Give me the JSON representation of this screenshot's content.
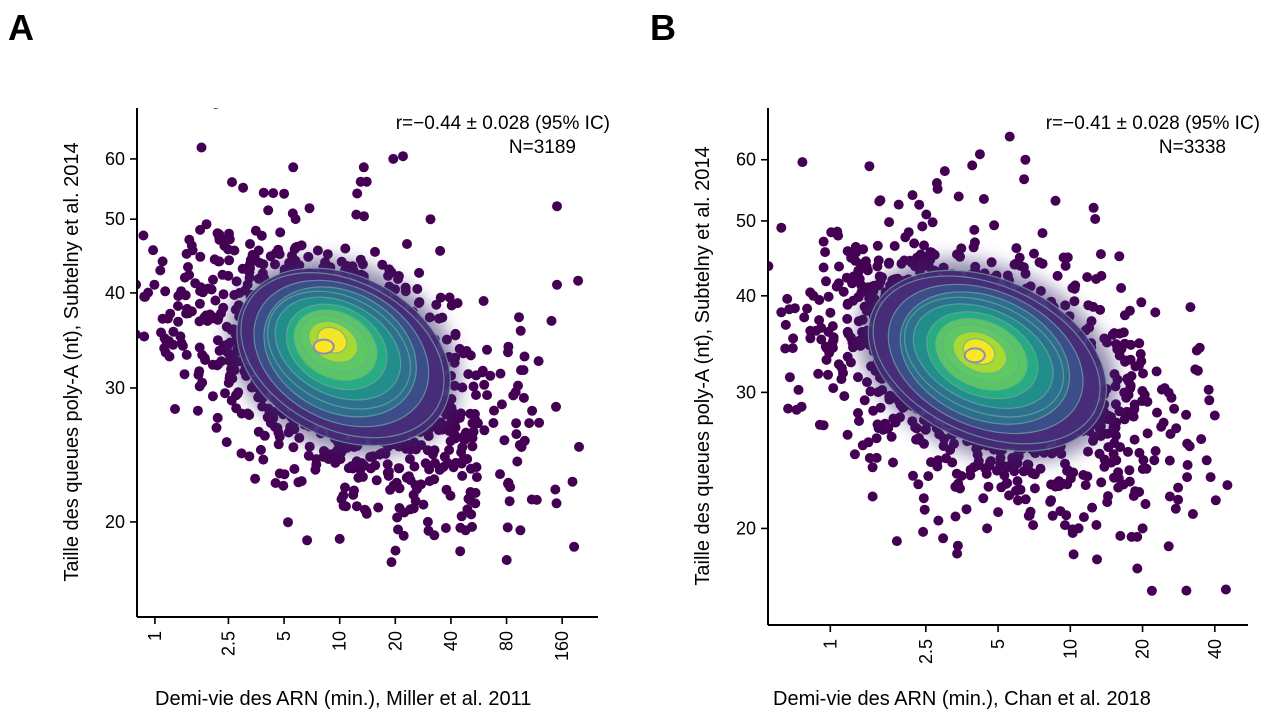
{
  "chart_data": [
    {
      "panel_letter": "A",
      "type": "scatter",
      "density_overlay": "kde-contours-viridis",
      "xlabel": "Demi-vie des ARN (min.), Miller et al.  2011",
      "ylabel": "Taille des queues poly-A (nt), Subtelny et al. 2014",
      "xscale": "log",
      "yscale": "log",
      "xlim": [
        0.8,
        250
      ],
      "ylim": [
        15,
        70
      ],
      "xticks": [
        1,
        2.5,
        5,
        10,
        20,
        40,
        80,
        160
      ],
      "xtick_labels": [
        "1",
        "2.5",
        "5",
        "10",
        "20",
        "40",
        "80",
        "160"
      ],
      "yticks": [
        20,
        30,
        40,
        50,
        60
      ],
      "ytick_labels": [
        "20",
        "30",
        "40",
        "50",
        "60"
      ],
      "annotation": {
        "line1": "r=−0.44 ± 0.028 (95% IC)",
        "line2": "N=3189"
      },
      "density_peak": {
        "x": 8.2,
        "y": 34
      },
      "cloud": {
        "cx": 10,
        "cy": 32,
        "sx": 0.42,
        "sy": 0.085,
        "rho": -0.44,
        "n": 1300,
        "seed": 11
      },
      "outliers": [
        {
          "x": 1.1,
          "y": 44
        },
        {
          "x": 1.2,
          "y": 33
        },
        {
          "x": 1.1,
          "y": 37
        },
        {
          "x": 1.6,
          "y": 45.5
        },
        {
          "x": 3.0,
          "y": 55
        },
        {
          "x": 5.0,
          "y": 54
        },
        {
          "x": 5.6,
          "y": 58.5
        },
        {
          "x": 13.5,
          "y": 58.5
        },
        {
          "x": 13.0,
          "y": 56
        },
        {
          "x": 14.0,
          "y": 56
        },
        {
          "x": 19.5,
          "y": 60
        },
        {
          "x": 22.0,
          "y": 60.5
        },
        {
          "x": 31.0,
          "y": 50
        },
        {
          "x": 150.0,
          "y": 52
        },
        {
          "x": 150.0,
          "y": 41
        },
        {
          "x": 195.0,
          "y": 41.5
        },
        {
          "x": 100.0,
          "y": 33
        },
        {
          "x": 110.0,
          "y": 28
        },
        {
          "x": 120.0,
          "y": 27
        },
        {
          "x": 10.0,
          "y": 19
        },
        {
          "x": 10.5,
          "y": 21
        },
        {
          "x": 14.0,
          "y": 20.5
        },
        {
          "x": 48.0,
          "y": 19.5
        },
        {
          "x": 52.0,
          "y": 19.7
        },
        {
          "x": 95.0,
          "y": 19.5
        },
        {
          "x": 4.5,
          "y": 22.5
        },
        {
          "x": 30.0,
          "y": 20
        }
      ]
    },
    {
      "panel_letter": "B",
      "type": "scatter",
      "density_overlay": "kde-contours-viridis",
      "xlabel": "Demi-vie des ARN (min.), Chan et al. 2018",
      "ylabel": "Taille des queues poly-A (nt), Subtelny et al. 2014",
      "xscale": "log",
      "yscale": "log",
      "xlim": [
        0.55,
        55
      ],
      "ylim": [
        15,
        70
      ],
      "xticks": [
        1,
        2.5,
        5,
        10,
        20,
        40
      ],
      "xtick_labels": [
        "1",
        "2.5",
        "5",
        "10",
        "20",
        "40"
      ],
      "yticks": [
        20,
        30,
        40,
        50,
        60
      ],
      "ytick_labels": [
        "20",
        "30",
        "40",
        "50",
        "60"
      ],
      "annotation": {
        "line1": "r=−0.41 ± 0.028 (95% IC)",
        "line2": "N=3338"
      },
      "density_peak": {
        "x": 4.0,
        "y": 33.5
      },
      "cloud": {
        "cx": 4.3,
        "cy": 32,
        "sx": 0.36,
        "sy": 0.085,
        "rho": -0.41,
        "n": 1350,
        "seed": 29
      },
      "outliers": [
        {
          "x": 0.8,
          "y": 38.5
        },
        {
          "x": 0.85,
          "y": 40
        },
        {
          "x": 0.9,
          "y": 39.5
        },
        {
          "x": 1.6,
          "y": 53
        },
        {
          "x": 2.2,
          "y": 54
        },
        {
          "x": 2.8,
          "y": 55
        },
        {
          "x": 3.0,
          "y": 58
        },
        {
          "x": 3.9,
          "y": 59
        },
        {
          "x": 4.2,
          "y": 61
        },
        {
          "x": 6.5,
          "y": 60
        },
        {
          "x": 12.5,
          "y": 52
        },
        {
          "x": 16.0,
          "y": 45
        },
        {
          "x": 34.0,
          "y": 32
        },
        {
          "x": 40.0,
          "y": 28
        },
        {
          "x": 37.0,
          "y": 24.5
        },
        {
          "x": 26.0,
          "y": 22
        },
        {
          "x": 20.0,
          "y": 20
        },
        {
          "x": 18.0,
          "y": 19.5
        },
        {
          "x": 19.0,
          "y": 19.5
        },
        {
          "x": 3.4,
          "y": 19
        },
        {
          "x": 4.5,
          "y": 20
        },
        {
          "x": 5.0,
          "y": 21
        },
        {
          "x": 7.0,
          "y": 20.2
        },
        {
          "x": 9.5,
          "y": 20.2
        },
        {
          "x": 1.5,
          "y": 22
        },
        {
          "x": 1.5,
          "y": 24
        }
      ]
    }
  ]
}
